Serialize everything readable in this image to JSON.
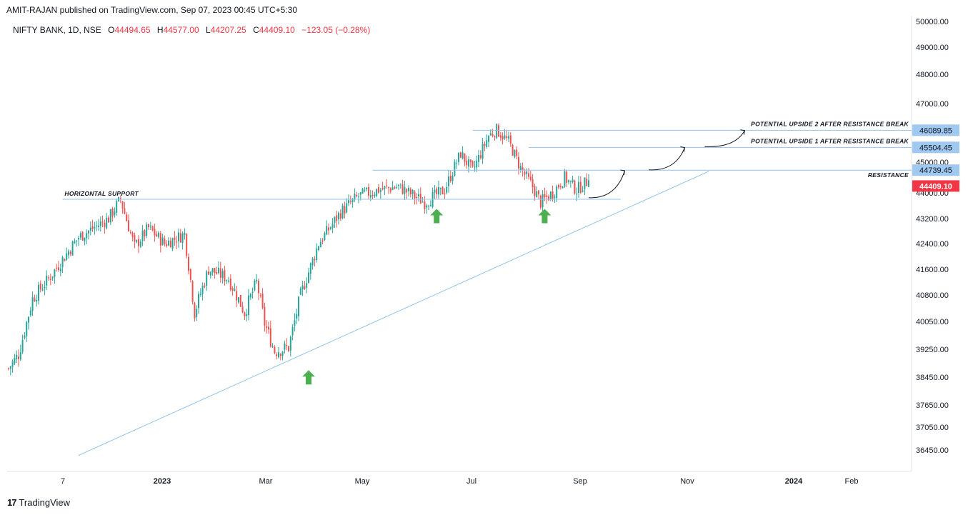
{
  "publisher": "AMIT-RAJAN published on TradingView.com, Sep 07, 2023 00:45 UTC+5:30",
  "symbol": {
    "name": "NIFTY BANK, 1D, NSE",
    "o_label": "O",
    "o": "44494.65",
    "h_label": "H",
    "h": "44577.00",
    "l_label": "L",
    "l": "44207.25",
    "c_label": "C",
    "c": "44409.10",
    "change": "−123.05 (−0.28%)"
  },
  "brand": {
    "name": "TradingView",
    "mark": "17"
  },
  "colors": {
    "up": "#26a69a",
    "down": "#ef5350",
    "line": "#90c2ec",
    "label_bg": "#9fc9f0",
    "last_price": "#f23645",
    "arrow": "#4caf50"
  },
  "chart_data": {
    "type": "candlestick",
    "title": "NIFTY BANK, 1D, NSE",
    "ylim": [
      36000,
      50250
    ],
    "y_ticks": [
      "50000.00",
      "49000.00",
      "48000.00",
      "47000.00",
      "45000.00",
      "44000.00",
      "43200.00",
      "42400.00",
      "41600.00",
      "40800.00",
      "40050.00",
      "39250.00",
      "38450.00",
      "37650.00",
      "37050.00",
      "36450.00"
    ],
    "x_ticks": [
      "7",
      "2023",
      "Mar",
      "May",
      "Jul",
      "Sep",
      "Nov",
      "2024",
      "Feb"
    ],
    "path_keypoints": [
      {
        "i": 0,
        "v": 38700
      },
      {
        "i": 5,
        "v": 39100
      },
      {
        "i": 12,
        "v": 40700
      },
      {
        "i": 20,
        "v": 41300
      },
      {
        "i": 35,
        "v": 42600
      },
      {
        "i": 50,
        "v": 43200
      },
      {
        "i": 56,
        "v": 43800
      },
      {
        "i": 63,
        "v": 42300
      },
      {
        "i": 70,
        "v": 42900
      },
      {
        "i": 78,
        "v": 42400
      },
      {
        "i": 88,
        "v": 42700
      },
      {
        "i": 93,
        "v": 40300
      },
      {
        "i": 100,
        "v": 41600
      },
      {
        "i": 110,
        "v": 41300
      },
      {
        "i": 118,
        "v": 40300
      },
      {
        "i": 124,
        "v": 41200
      },
      {
        "i": 128,
        "v": 40000
      },
      {
        "i": 133,
        "v": 39200
      },
      {
        "i": 140,
        "v": 39300
      },
      {
        "i": 146,
        "v": 40800
      },
      {
        "i": 155,
        "v": 42400
      },
      {
        "i": 166,
        "v": 43400
      },
      {
        "i": 175,
        "v": 43900
      },
      {
        "i": 185,
        "v": 44100
      },
      {
        "i": 195,
        "v": 44200
      },
      {
        "i": 208,
        "v": 43700
      },
      {
        "i": 218,
        "v": 44100
      },
      {
        "i": 226,
        "v": 45300
      },
      {
        "i": 232,
        "v": 44700
      },
      {
        "i": 240,
        "v": 45900
      },
      {
        "i": 244,
        "v": 46100
      },
      {
        "i": 250,
        "v": 45700
      },
      {
        "i": 256,
        "v": 44800
      },
      {
        "i": 262,
        "v": 44200
      },
      {
        "i": 266,
        "v": 43700
      },
      {
        "i": 272,
        "v": 44000
      },
      {
        "i": 278,
        "v": 44500
      },
      {
        "i": 284,
        "v": 44100
      },
      {
        "i": 290,
        "v": 44409
      }
    ],
    "levels": [
      {
        "name": "horizontal-support",
        "value": 43800,
        "text": "HORIZONTAL SUPPORT"
      },
      {
        "name": "resistance",
        "value": 44739.45,
        "label": "44739.45",
        "text": "RESISTANCE"
      },
      {
        "name": "upside-1",
        "value": 45504.45,
        "label": "45504.45",
        "text": "POTENTIAL UPSIDE 1 AFTER RESISTANCE BREAK"
      },
      {
        "name": "upside-2",
        "value": 46089.85,
        "label": "46089.85",
        "text": "POTENTIAL UPSIDE 2 AFTER RESISTANCE BREAK"
      }
    ],
    "last_price": {
      "value": 44409.1,
      "label": "44409.10"
    },
    "trendline": {
      "from": {
        "i": 35,
        "v": 36300
      },
      "to": {
        "i": 350,
        "v": 44700
      }
    },
    "support_arrows": [
      {
        "i": 150,
        "v": 38650
      },
      {
        "i": 214,
        "v": 43500
      },
      {
        "i": 268,
        "v": 43500
      }
    ],
    "projection_arrows": [
      {
        "from": {
          "i": 290,
          "v": 43850
        },
        "to": {
          "i": 308,
          "v": 44720
        }
      },
      {
        "from": {
          "i": 320,
          "v": 44750
        },
        "to": {
          "i": 338,
          "v": 45500
        }
      },
      {
        "from": {
          "i": 348,
          "v": 45530
        },
        "to": {
          "i": 368,
          "v": 46080
        }
      }
    ]
  }
}
